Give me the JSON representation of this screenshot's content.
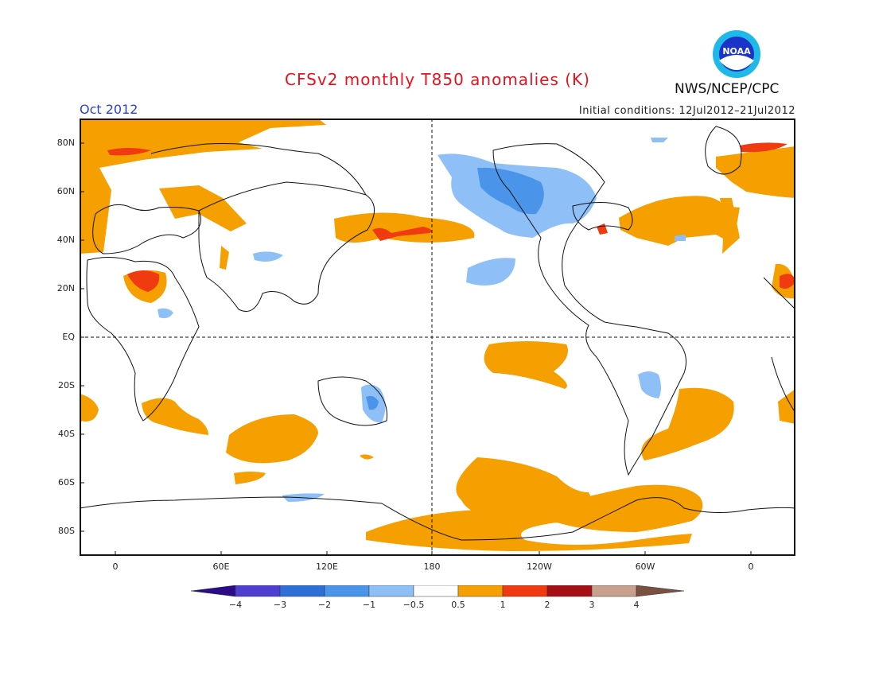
{
  "header": {
    "title": "CFSv2 monthly T850 anomalies (K)",
    "month": "Oct 2012",
    "initial_conditions": "Initial conditions: 12Jul2012–21Jul2012",
    "agency": "NWS/NCEP/CPC",
    "logo_text": "NOAA"
  },
  "map": {
    "lat_labels": [
      "80N",
      "60N",
      "40N",
      "20N",
      "EQ",
      "20S",
      "40S",
      "60S",
      "80S"
    ],
    "lon_labels": [
      "0",
      "60E",
      "120E",
      "180",
      "120W",
      "60W",
      "0"
    ]
  },
  "colorbar": {
    "tick_labels": [
      "−4",
      "−3",
      "−2",
      "−1",
      "−0.5",
      "0.5",
      "1",
      "2",
      "3",
      "4"
    ],
    "colors": [
      "#2b0b87",
      "#4f3fd0",
      "#2e6fd7",
      "#4a95ea",
      "#8ec0f7",
      "#ffffff",
      "#f5a000",
      "#f03a10",
      "#a50f16",
      "#c8a08e",
      "#7a5040"
    ]
  }
}
